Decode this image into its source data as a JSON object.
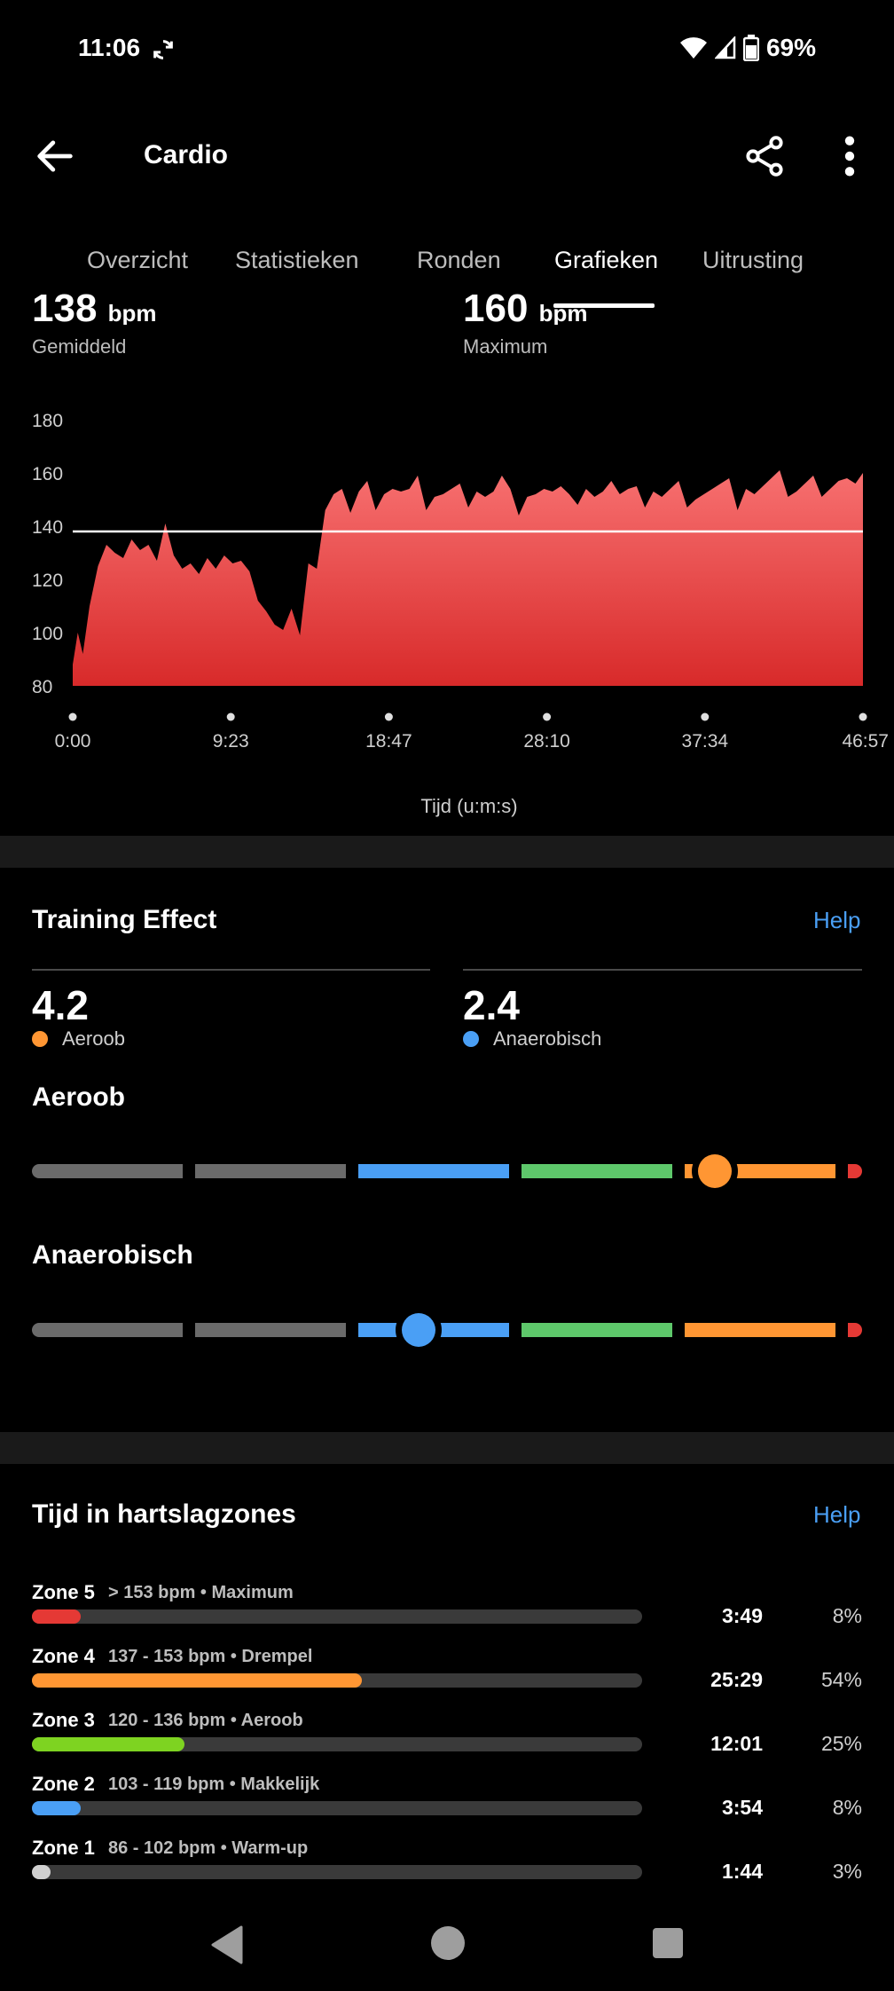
{
  "status": {
    "time": "11:06",
    "battery": "69%"
  },
  "header": {
    "title": "Cardio"
  },
  "tabs": [
    {
      "label": "Overzicht"
    },
    {
      "label": "Statistieken"
    },
    {
      "label": "Ronden"
    },
    {
      "label": "Grafieken",
      "active": true
    },
    {
      "label": "Uitrusting"
    }
  ],
  "stats": {
    "average": {
      "value": "138",
      "unit": "bpm",
      "label": "Gemiddeld"
    },
    "maximum": {
      "value": "160",
      "unit": "bpm",
      "label": "Maximum"
    }
  },
  "chart_data": {
    "type": "area",
    "xlabel": "Tijd (u:m:s)",
    "ylabel": "",
    "ylim": [
      80,
      180
    ],
    "y_ticks": [
      "180",
      "160",
      "140",
      "120",
      "100",
      "80"
    ],
    "x_ticks": [
      "0:00",
      "9:23",
      "18:47",
      "28:10",
      "37:34",
      "46:57"
    ],
    "xlim_minutes": [
      0,
      46.95
    ],
    "average_line": 138,
    "fill_color": "#e83a3a",
    "series": [
      {
        "x_minutes": [
          0,
          0.3,
          0.6,
          1,
          1.5,
          2,
          2.5,
          3,
          3.5,
          4,
          4.5,
          5,
          5.5,
          6,
          6.5,
          7,
          7.5,
          8,
          8.5,
          9,
          9.5,
          10,
          10.5,
          11,
          11.5,
          12,
          12.5,
          13,
          13.5,
          14,
          14.5,
          15,
          15.5,
          16,
          16.5,
          17,
          17.5,
          18,
          18.5,
          19,
          19.5,
          20,
          20.5,
          21,
          21.5,
          22,
          22.5,
          23,
          23.5,
          24,
          24.5,
          25,
          25.5,
          26,
          26.5,
          27,
          27.5,
          28,
          28.5,
          29,
          29.5,
          30,
          30.5,
          31,
          31.5,
          32,
          32.5,
          33,
          33.5,
          34,
          34.5,
          35,
          35.5,
          36,
          36.5,
          37,
          37.5,
          38,
          38.5,
          39,
          39.5,
          40,
          40.5,
          41,
          41.5,
          42,
          42.5,
          43,
          43.5,
          44,
          44.5,
          45,
          45.5,
          46,
          46.5,
          46.95
        ],
        "values": [
          88,
          100,
          92,
          110,
          125,
          133,
          130,
          128,
          135,
          131,
          133,
          127,
          141,
          129,
          124,
          126,
          122,
          128,
          124,
          129,
          126,
          127,
          123,
          112,
          108,
          103,
          101,
          109,
          99,
          126,
          124,
          146,
          152,
          154,
          145,
          153,
          157,
          146,
          152,
          154,
          153,
          154,
          159,
          146,
          151,
          152,
          154,
          156,
          147,
          153,
          151,
          153,
          159,
          154,
          144,
          151,
          152,
          154,
          153,
          155,
          152,
          148,
          154,
          151,
          153,
          157,
          152,
          154,
          155,
          147,
          153,
          151,
          154,
          157,
          147,
          150,
          152,
          154,
          156,
          158,
          146,
          154,
          152,
          155,
          158,
          161,
          151,
          153,
          156,
          159,
          151,
          154,
          157,
          158,
          156,
          160
        ]
      }
    ]
  },
  "training_effect": {
    "title": "Training Effect",
    "help": "Help",
    "aerobic": {
      "value": "4.2",
      "label": "Aeroob",
      "level": 4.2
    },
    "anaerobic": {
      "value": "2.4",
      "label": "Anaerobisch",
      "level": 2.4
    },
    "scale_aerobic_title": "Aeroob",
    "scale_anaerobic_title": "Anaerobisch",
    "colors": {
      "grey": "#6b6b6b",
      "blue": "#4a9ff5",
      "green": "#5ec86b",
      "orange": "#ff9633",
      "red": "#e53935"
    }
  },
  "zones": {
    "title": "Tijd in hartslagzones",
    "help": "Help",
    "items": [
      {
        "name": "Zone 5",
        "desc": "> 153 bpm • Maximum",
        "time": "3:49",
        "pct": "8%",
        "fraction": 0.08,
        "color": "#e53935"
      },
      {
        "name": "Zone 4",
        "desc": "137 - 153 bpm • Drempel",
        "time": "25:29",
        "pct": "54%",
        "fraction": 0.54,
        "color": "#ff9633"
      },
      {
        "name": "Zone 3",
        "desc": "120 - 136 bpm • Aeroob",
        "time": "12:01",
        "pct": "25%",
        "fraction": 0.25,
        "color": "#7ed321"
      },
      {
        "name": "Zone 2",
        "desc": "103 - 119 bpm • Makkelijk",
        "time": "3:54",
        "pct": "8%",
        "fraction": 0.08,
        "color": "#4a9ff5"
      },
      {
        "name": "Zone 1",
        "desc": "86 - 102 bpm • Warm-up",
        "time": "1:44",
        "pct": "3%",
        "fraction": 0.03,
        "color": "#d0d0d0"
      }
    ]
  }
}
